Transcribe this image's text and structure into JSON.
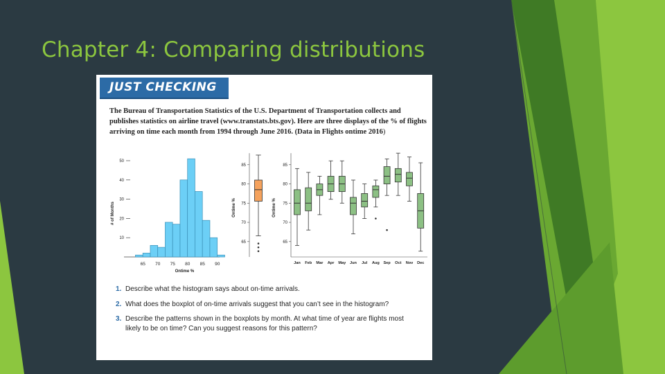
{
  "slide": {
    "title": "Chapter 4: Comparing distributions"
  },
  "textbook": {
    "banner": "JUST CHECKING",
    "intro_lead": "The Bureau of Transportation Statistics of the U.S. Department of Transportation collects and publishes statistics on airline travel (www.transtats.bts.gov). Here are three displays of the % of flights arriving on time each month from 1994 through June 2016. (Data in",
    "intro_file": "Flights ontime 2016",
    "intro_tail": ")",
    "questions": [
      {
        "num": "1.",
        "text": "Describe what the histogram says about on-time arrivals."
      },
      {
        "num": "2.",
        "text": "What does the boxplot of on-time arrivals suggest that you can’t see in the histogram?"
      },
      {
        "num": "3.",
        "text": "Describe the patterns shown in the boxplots by month. At what time of year are flights most likely to be on time? Can you suggest reasons for this pattern?"
      }
    ]
  },
  "colors": {
    "background": "#2b3a42",
    "accent_green": "#8cc63f",
    "histogram_bar": "#6ccff6",
    "boxplot_orange": "#f5a25d",
    "boxplot_green": "#8cc084",
    "banner_blue": "#2c6ba6"
  },
  "chart_data": [
    {
      "type": "bar",
      "chart_kind": "histogram",
      "xlabel": "Ontime %",
      "ylabel": "# of Months",
      "xticks": [
        "65",
        "70",
        "75",
        "80",
        "85",
        "90"
      ],
      "yticks": [
        "10",
        "20",
        "30",
        "40",
        "50"
      ],
      "ylim": [
        0,
        55
      ],
      "bin_width": 2.5,
      "bins": [
        {
          "start": 62.5,
          "count": 1
        },
        {
          "start": 65,
          "count": 2
        },
        {
          "start": 67.5,
          "count": 6
        },
        {
          "start": 70,
          "count": 5
        },
        {
          "start": 72.5,
          "count": 18
        },
        {
          "start": 75,
          "count": 17
        },
        {
          "start": 77.5,
          "count": 40
        },
        {
          "start": 80,
          "count": 51
        },
        {
          "start": 82.5,
          "count": 34
        },
        {
          "start": 85,
          "count": 19
        },
        {
          "start": 87.5,
          "count": 10
        },
        {
          "start": 90,
          "count": 1
        }
      ]
    },
    {
      "type": "boxplot",
      "ylabel": "Ontime %",
      "yticks": [
        "65",
        "70",
        "75",
        "80",
        "85"
      ],
      "ylim": [
        61,
        88
      ],
      "box": {
        "min": 66.5,
        "q1": 75.5,
        "median": 78.5,
        "q3": 81,
        "max": 87.5
      },
      "outliers": [
        64.5,
        63.5,
        62.5
      ]
    },
    {
      "type": "boxplot",
      "ylabel": "Ontime %",
      "yticks": [
        "65",
        "70",
        "75",
        "80",
        "85"
      ],
      "ylim": [
        61,
        88
      ],
      "categories": [
        "Jan",
        "Feb",
        "Mar",
        "Apr",
        "May",
        "Jun",
        "Jul",
        "Aug",
        "Sep",
        "Oct",
        "Nov",
        "Dec"
      ],
      "boxes": [
        {
          "min": 64,
          "q1": 72,
          "median": 75,
          "q3": 78.5,
          "max": 84
        },
        {
          "min": 68,
          "q1": 73,
          "median": 75,
          "q3": 79,
          "max": 83
        },
        {
          "min": 72,
          "q1": 77,
          "median": 78.5,
          "q3": 80,
          "max": 82
        },
        {
          "min": 76,
          "q1": 78,
          "median": 80,
          "q3": 82,
          "max": 86
        },
        {
          "min": 75,
          "q1": 78,
          "median": 80,
          "q3": 82,
          "max": 86
        },
        {
          "min": 67,
          "q1": 72,
          "median": 75,
          "q3": 76.5,
          "max": 81
        },
        {
          "min": 71,
          "q1": 74,
          "median": 75.5,
          "q3": 77.5,
          "max": 80
        },
        {
          "min": 74,
          "q1": 76.5,
          "median": 78.5,
          "q3": 79.5,
          "max": 81,
          "outliers": [
            71
          ]
        },
        {
          "min": 77,
          "q1": 80,
          "median": 82,
          "q3": 84.5,
          "max": 86.5,
          "outliers": [
            68
          ]
        },
        {
          "min": 77,
          "q1": 80.5,
          "median": 82.5,
          "q3": 84,
          "max": 88
        },
        {
          "min": 75.5,
          "q1": 79.5,
          "median": 81.5,
          "q3": 83,
          "max": 87
        },
        {
          "min": 62.5,
          "q1": 68.5,
          "median": 73,
          "q3": 77.5,
          "max": 85.5
        }
      ]
    }
  ]
}
